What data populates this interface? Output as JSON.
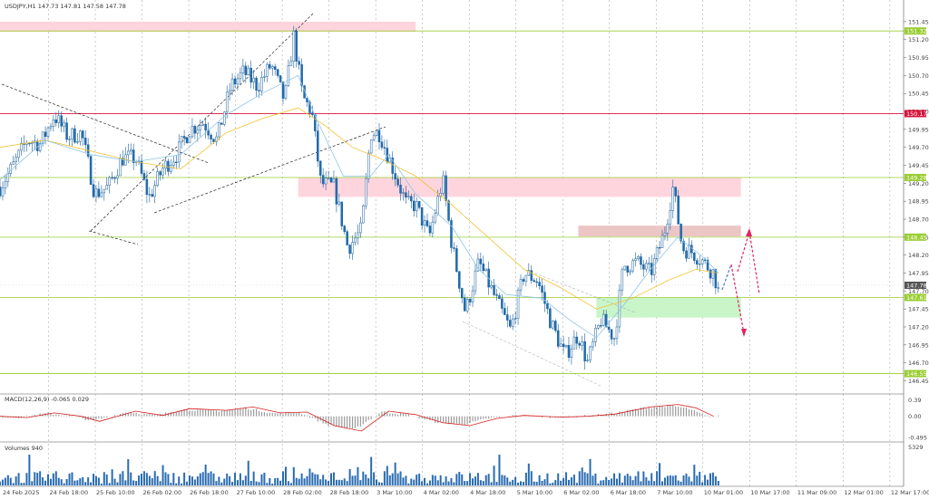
{
  "chart_data": {
    "type": "candlestick",
    "header": {
      "main": "USDJPY,H1  147.73 147.81 147.58 147.78",
      "macd": "MACD(12,26,9) -0.065 0.029",
      "volume": "Volumes 940"
    },
    "price_axis": {
      "ylim": [
        146.33,
        151.6
      ],
      "ticks": [
        "151.45",
        "151.20",
        "150.95",
        "150.70",
        "150.45",
        "150.20",
        "149.95",
        "149.70",
        "149.45",
        "149.20",
        "148.95",
        "148.70",
        "148.45",
        "148.20",
        "147.95",
        "147.70",
        "147.45",
        "147.20",
        "146.95",
        "146.70",
        "146.45"
      ]
    },
    "levels": [
      {
        "value": 151.32,
        "label": "151.32",
        "color": "#9acd32"
      },
      {
        "value": 150.17,
        "label": "150.17",
        "color": "#d6143c"
      },
      {
        "value": 149.28,
        "label": "149.28",
        "color": "#9acd32"
      },
      {
        "value": 148.45,
        "label": "148.45",
        "color": "#9acd32"
      },
      {
        "value": 147.61,
        "label": "147.61",
        "color": "#9acd32"
      },
      {
        "value": 146.55,
        "label": "146.55",
        "color": "#9acd32"
      }
    ],
    "current_price": {
      "value": 147.78,
      "label": "147.78"
    },
    "zones": [
      {
        "x0": 0,
        "x1": 0.46,
        "y0": 151.31,
        "y1": 151.45,
        "color": "#ffd5dd"
      },
      {
        "x0": 0.33,
        "x1": 0.82,
        "y0": 149.01,
        "y1": 149.28,
        "color": "#ffd5dd"
      },
      {
        "x0": 0.64,
        "x1": 0.82,
        "y0": 148.46,
        "y1": 148.61,
        "color": "#ecc5c5"
      },
      {
        "x0": 0.66,
        "x1": 0.82,
        "y0": 147.33,
        "y1": 147.61,
        "color": "#c9f5c9"
      }
    ],
    "macd_axis": {
      "ylim": [
        -0.52,
        0.42
      ],
      "ticks": [
        "0.39",
        "0.00",
        "-0.495"
      ]
    },
    "volume_axis": {
      "ticks": [
        "5329"
      ]
    },
    "x_labels": [
      "24 Feb 2025",
      "24 Feb 18:00",
      "25 Feb 10:00",
      "26 Feb 02:00",
      "26 Feb 18:00",
      "27 Feb 10:00",
      "28 Feb 02:00",
      "28 Feb 18:00",
      "3 Mar 10:00",
      "4 Mar 02:00",
      "4 Mar 18:00",
      "5 Mar 10:00",
      "6 Mar 02:00",
      "6 Mar 18:00",
      "7 Mar 10:00",
      "10 Mar 01:00",
      "10 Mar 17:00",
      "11 Mar 09:00",
      "12 Mar 01:00",
      "12 Mar 17:00"
    ],
    "price_path": [
      [
        0,
        149.15
      ],
      [
        0.015,
        149.45
      ],
      [
        0.03,
        149.8
      ],
      [
        0.045,
        149.75
      ],
      [
        0.06,
        150.15
      ],
      [
        0.075,
        149.85
      ],
      [
        0.09,
        149.9
      ],
      [
        0.105,
        149.05
      ],
      [
        0.12,
        149.15
      ],
      [
        0.135,
        149.55
      ],
      [
        0.15,
        149.55
      ],
      [
        0.165,
        149.0
      ],
      [
        0.18,
        149.4
      ],
      [
        0.195,
        149.6
      ],
      [
        0.21,
        149.95
      ],
      [
        0.225,
        150.05
      ],
      [
        0.24,
        149.8
      ],
      [
        0.255,
        150.55
      ],
      [
        0.27,
        150.75
      ],
      [
        0.285,
        150.55
      ],
      [
        0.3,
        150.85
      ],
      [
        0.315,
        150.35
      ],
      [
        0.325,
        151.25
      ],
      [
        0.335,
        150.4
      ],
      [
        0.345,
        150.2
      ],
      [
        0.355,
        149.2
      ],
      [
        0.37,
        149.15
      ],
      [
        0.385,
        148.3
      ],
      [
        0.4,
        148.55
      ],
      [
        0.41,
        149.9
      ],
      [
        0.42,
        149.9
      ],
      [
        0.435,
        149.4
      ],
      [
        0.45,
        148.9
      ],
      [
        0.46,
        148.9
      ],
      [
        0.475,
        148.45
      ],
      [
        0.49,
        149.25
      ],
      [
        0.5,
        148.35
      ],
      [
        0.515,
        147.4
      ],
      [
        0.53,
        148.1
      ],
      [
        0.55,
        147.55
      ],
      [
        0.565,
        147.15
      ],
      [
        0.58,
        147.95
      ],
      [
        0.595,
        147.85
      ],
      [
        0.61,
        147.25
      ],
      [
        0.625,
        146.8
      ],
      [
        0.64,
        147.1
      ],
      [
        0.65,
        146.7
      ],
      [
        0.665,
        147.3
      ],
      [
        0.68,
        147.05
      ],
      [
        0.69,
        148.05
      ],
      [
        0.705,
        148.1
      ],
      [
        0.72,
        147.95
      ],
      [
        0.735,
        148.5
      ],
      [
        0.745,
        149.15
      ],
      [
        0.755,
        148.3
      ],
      [
        0.765,
        148.25
      ],
      [
        0.775,
        148.15
      ],
      [
        0.79,
        147.95
      ],
      [
        0.795,
        147.7
      ]
    ],
    "ma_fast": [
      [
        0,
        149.25
      ],
      [
        0.05,
        149.8
      ],
      [
        0.1,
        149.6
      ],
      [
        0.15,
        149.5
      ],
      [
        0.2,
        149.6
      ],
      [
        0.25,
        150.15
      ],
      [
        0.29,
        150.45
      ],
      [
        0.33,
        150.7
      ],
      [
        0.35,
        150.1
      ],
      [
        0.38,
        149.3
      ],
      [
        0.41,
        149.3
      ],
      [
        0.43,
        149.6
      ],
      [
        0.46,
        149.05
      ],
      [
        0.5,
        148.6
      ],
      [
        0.53,
        148.0
      ],
      [
        0.56,
        147.65
      ],
      [
        0.6,
        147.6
      ],
      [
        0.63,
        147.3
      ],
      [
        0.66,
        147.05
      ],
      [
        0.69,
        147.5
      ],
      [
        0.72,
        148.0
      ],
      [
        0.75,
        148.45
      ],
      [
        0.78,
        148.15
      ],
      [
        0.795,
        147.95
      ]
    ],
    "ma_slow": [
      [
        0,
        149.7
      ],
      [
        0.05,
        149.8
      ],
      [
        0.1,
        149.65
      ],
      [
        0.15,
        149.5
      ],
      [
        0.2,
        149.4
      ],
      [
        0.25,
        149.9
      ],
      [
        0.29,
        150.1
      ],
      [
        0.33,
        150.25
      ],
      [
        0.36,
        150.0
      ],
      [
        0.39,
        149.7
      ],
      [
        0.42,
        149.55
      ],
      [
        0.46,
        149.3
      ],
      [
        0.5,
        148.9
      ],
      [
        0.54,
        148.45
      ],
      [
        0.58,
        148.0
      ],
      [
        0.62,
        147.75
      ],
      [
        0.66,
        147.45
      ],
      [
        0.7,
        147.6
      ],
      [
        0.74,
        147.85
      ],
      [
        0.77,
        148.0
      ],
      [
        0.795,
        147.95
      ]
    ],
    "macd_signal": [
      [
        0,
        0
      ],
      [
        0.03,
        -0.03
      ],
      [
        0.06,
        0.08
      ],
      [
        0.09,
        0.0
      ],
      [
        0.11,
        -0.12
      ],
      [
        0.15,
        0.12
      ],
      [
        0.18,
        0.02
      ],
      [
        0.21,
        0.18
      ],
      [
        0.25,
        0.14
      ],
      [
        0.28,
        0.22
      ],
      [
        0.31,
        0.08
      ],
      [
        0.34,
        0.1
      ],
      [
        0.37,
        -0.22
      ],
      [
        0.4,
        -0.35
      ],
      [
        0.43,
        0.12
      ],
      [
        0.46,
        0.04
      ],
      [
        0.49,
        -0.15
      ],
      [
        0.52,
        -0.22
      ],
      [
        0.55,
        -0.05
      ],
      [
        0.58,
        0.02
      ],
      [
        0.62,
        -0.02
      ],
      [
        0.65,
        0.0
      ],
      [
        0.68,
        0.05
      ],
      [
        0.72,
        0.22
      ],
      [
        0.75,
        0.28
      ],
      [
        0.77,
        0.2
      ],
      [
        0.79,
        0.0
      ]
    ]
  }
}
